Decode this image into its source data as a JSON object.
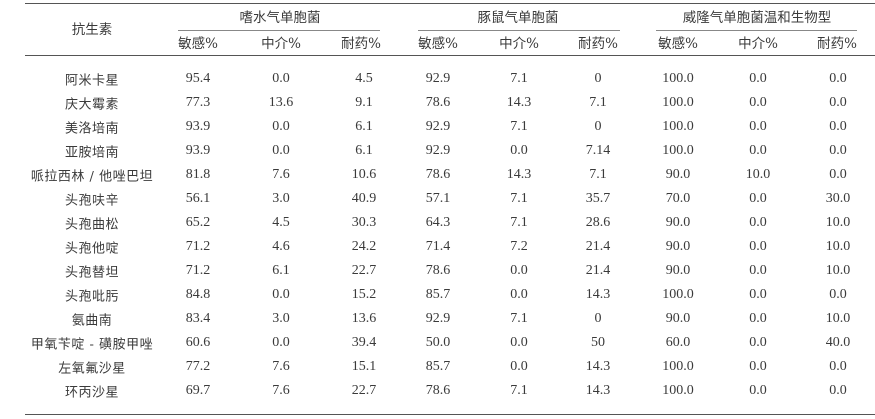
{
  "header": {
    "first_col": "抗生素",
    "groups": [
      {
        "title": "嗜水气单胞菌",
        "subs": [
          "敏感%",
          "中介%",
          "耐药%"
        ]
      },
      {
        "title": "豚鼠气单胞菌",
        "subs": [
          "敏感%",
          "中介%",
          "耐药%"
        ]
      },
      {
        "title": "威隆气单胞菌温和生物型",
        "subs": [
          "敏感%",
          "中介%",
          "耐药%"
        ]
      }
    ]
  },
  "rows": [
    {
      "name": "阿米卡星",
      "values": [
        "95.4",
        "0.0",
        "4.5",
        "92.9",
        "7.1",
        "0",
        "100.0",
        "0.0",
        "0.0"
      ]
    },
    {
      "name": "庆大霉素",
      "values": [
        "77.3",
        "13.6",
        "9.1",
        "78.6",
        "14.3",
        "7.1",
        "100.0",
        "0.0",
        "0.0"
      ]
    },
    {
      "name": "美洛培南",
      "values": [
        "93.9",
        "0.0",
        "6.1",
        "92.9",
        "7.1",
        "0",
        "100.0",
        "0.0",
        "0.0"
      ]
    },
    {
      "name": "亚胺培南",
      "values": [
        "93.9",
        "0.0",
        "6.1",
        "92.9",
        "0.0",
        "7.14",
        "100.0",
        "0.0",
        "0.0"
      ]
    },
    {
      "name": "哌拉西林 / 他唑巴坦",
      "values": [
        "81.8",
        "7.6",
        "10.6",
        "78.6",
        "14.3",
        "7.1",
        "90.0",
        "10.0",
        "0.0"
      ]
    },
    {
      "name": "头孢呋辛",
      "values": [
        "56.1",
        "3.0",
        "40.9",
        "57.1",
        "7.1",
        "35.7",
        "70.0",
        "0.0",
        "30.0"
      ]
    },
    {
      "name": "头孢曲松",
      "values": [
        "65.2",
        "4.5",
        "30.3",
        "64.3",
        "7.1",
        "28.6",
        "90.0",
        "0.0",
        "10.0"
      ]
    },
    {
      "name": "头孢他啶",
      "values": [
        "71.2",
        "4.6",
        "24.2",
        "71.4",
        "7.2",
        "21.4",
        "90.0",
        "0.0",
        "10.0"
      ]
    },
    {
      "name": "头孢替坦",
      "values": [
        "71.2",
        "6.1",
        "22.7",
        "78.6",
        "0.0",
        "21.4",
        "90.0",
        "0.0",
        "10.0"
      ]
    },
    {
      "name": "头孢吡肟",
      "values": [
        "84.8",
        "0.0",
        "15.2",
        "85.7",
        "0.0",
        "14.3",
        "100.0",
        "0.0",
        "0.0"
      ]
    },
    {
      "name": "氨曲南",
      "values": [
        "83.4",
        "3.0",
        "13.6",
        "92.9",
        "7.1",
        "0",
        "90.0",
        "0.0",
        "10.0"
      ]
    },
    {
      "name": "甲氧苄啶 - 磺胺甲唑",
      "values": [
        "60.6",
        "0.0",
        "39.4",
        "50.0",
        "0.0",
        "50",
        "60.0",
        "0.0",
        "40.0"
      ]
    },
    {
      "name": "左氧氟沙星",
      "values": [
        "77.2",
        "7.6",
        "15.1",
        "85.7",
        "0.0",
        "14.3",
        "100.0",
        "0.0",
        "0.0"
      ]
    },
    {
      "name": "环丙沙星",
      "values": [
        "69.7",
        "7.6",
        "22.7",
        "78.6",
        "7.1",
        "14.3",
        "100.0",
        "0.0",
        "0.0"
      ]
    }
  ]
}
